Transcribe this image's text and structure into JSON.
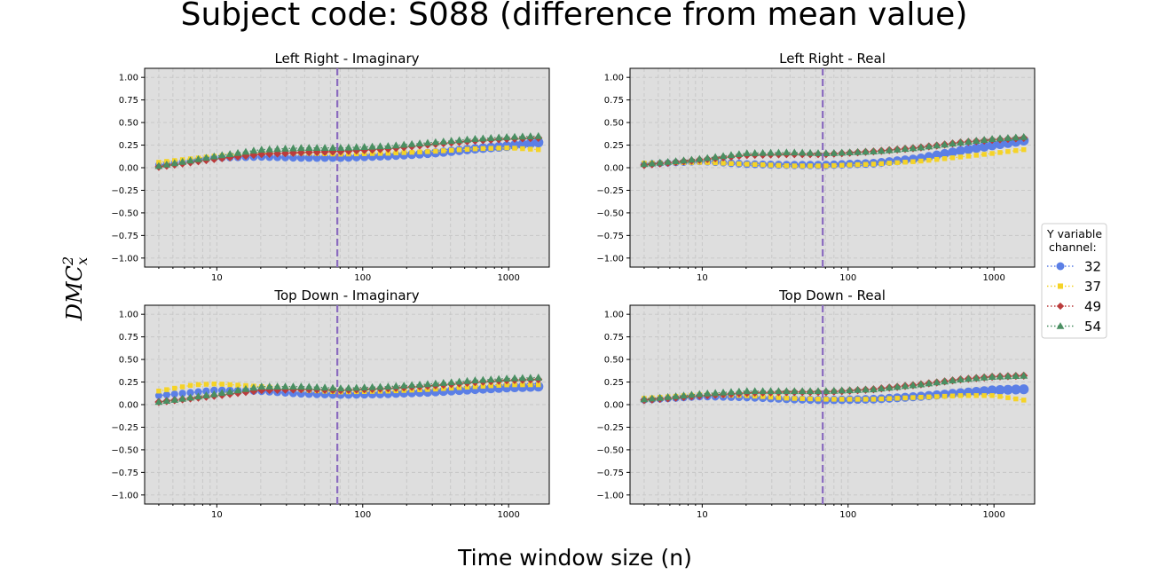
{
  "figure": {
    "title": "Subject code: S088 (difference from mean value)",
    "xlabel": "Time window size (n)",
    "ylabel_base": "DMC",
    "ylabel_sup": "2",
    "ylabel_sub": "x"
  },
  "legend": {
    "title_line1": "Y variable",
    "title_line2": "channel:",
    "entries": [
      {
        "label": "32",
        "color": "#5b7fe6",
        "marker": "circle"
      },
      {
        "label": "37",
        "color": "#f5d327",
        "marker": "square"
      },
      {
        "label": "49",
        "color": "#bb3c3c",
        "marker": "diamond"
      },
      {
        "label": "54",
        "color": "#4a8f62",
        "marker": "triangle"
      }
    ]
  },
  "colors": {
    "panel_bg": "#dedede",
    "grid": "#c6c6c6",
    "vline": "#8a6bbf"
  },
  "chart_data": [
    {
      "type": "scatter",
      "title": "Left Right - Imaginary",
      "xscale": "log",
      "xlim": [
        3.2,
        1900
      ],
      "ylim": [
        -1.1,
        1.1
      ],
      "xticks": [
        10,
        100,
        1000
      ],
      "xtick_labels": [
        "10",
        "100",
        "1000"
      ],
      "yticks": [
        1.0,
        0.75,
        0.5,
        0.25,
        0.0,
        -0.25,
        -0.5,
        -0.75,
        -1.0
      ],
      "ytick_labels": [
        "1.00",
        "0.75",
        "0.50",
        "0.25",
        "0.00",
        "−0.25",
        "−0.50",
        "−0.75",
        "−1.00"
      ],
      "grid": true,
      "vline_x": 67,
      "series": [
        {
          "name": "32",
          "anchors": [
            [
              4,
              0.03
            ],
            [
              10,
              0.11
            ],
            [
              20,
              0.12
            ],
            [
              40,
              0.11
            ],
            [
              70,
              0.11
            ],
            [
              150,
              0.13
            ],
            [
              300,
              0.16
            ],
            [
              600,
              0.21
            ],
            [
              1000,
              0.24
            ],
            [
              1600,
              0.28
            ]
          ]
        },
        {
          "name": "37",
          "anchors": [
            [
              4,
              0.06
            ],
            [
              10,
              0.13
            ],
            [
              20,
              0.16
            ],
            [
              40,
              0.16
            ],
            [
              70,
              0.15
            ],
            [
              150,
              0.16
            ],
            [
              300,
              0.18
            ],
            [
              600,
              0.21
            ],
            [
              1000,
              0.22
            ],
            [
              1600,
              0.2
            ]
          ]
        },
        {
          "name": "49",
          "anchors": [
            [
              4,
              0.01
            ],
            [
              10,
              0.1
            ],
            [
              20,
              0.15
            ],
            [
              40,
              0.17
            ],
            [
              70,
              0.18
            ],
            [
              150,
              0.21
            ],
            [
              300,
              0.26
            ],
            [
              600,
              0.3
            ],
            [
              1000,
              0.32
            ],
            [
              1600,
              0.33
            ]
          ]
        },
        {
          "name": "54",
          "anchors": [
            [
              4,
              0.02
            ],
            [
              10,
              0.13
            ],
            [
              20,
              0.2
            ],
            [
              40,
              0.22
            ],
            [
              70,
              0.22
            ],
            [
              150,
              0.24
            ],
            [
              300,
              0.28
            ],
            [
              600,
              0.32
            ],
            [
              1000,
              0.34
            ],
            [
              1600,
              0.35
            ]
          ]
        }
      ]
    },
    {
      "type": "scatter",
      "title": "Left Right - Real",
      "xscale": "log",
      "xlim": [
        3.2,
        1900
      ],
      "ylim": [
        -1.1,
        1.1
      ],
      "xticks": [
        10,
        100,
        1000
      ],
      "xtick_labels": [
        "10",
        "100",
        "1000"
      ],
      "yticks": [
        1.0,
        0.75,
        0.5,
        0.25,
        0.0,
        -0.25,
        -0.5,
        -0.75,
        -1.0
      ],
      "ytick_labels": [
        "1.00",
        "0.75",
        "0.50",
        "0.25",
        "0.00",
        "−0.25",
        "−0.50",
        "−0.75",
        "−1.00"
      ],
      "grid": true,
      "vline_x": 67,
      "series": [
        {
          "name": "32",
          "anchors": [
            [
              4,
              0.04
            ],
            [
              10,
              0.07
            ],
            [
              20,
              0.04
            ],
            [
              40,
              0.03
            ],
            [
              70,
              0.03
            ],
            [
              150,
              0.05
            ],
            [
              300,
              0.1
            ],
            [
              600,
              0.19
            ],
            [
              1000,
              0.25
            ],
            [
              1600,
              0.3
            ]
          ]
        },
        {
          "name": "37",
          "anchors": [
            [
              4,
              0.05
            ],
            [
              10,
              0.06
            ],
            [
              20,
              0.04
            ],
            [
              40,
              0.02
            ],
            [
              70,
              0.02
            ],
            [
              150,
              0.04
            ],
            [
              300,
              0.07
            ],
            [
              600,
              0.12
            ],
            [
              1000,
              0.16
            ],
            [
              1600,
              0.2
            ]
          ]
        },
        {
          "name": "49",
          "anchors": [
            [
              4,
              0.03
            ],
            [
              10,
              0.09
            ],
            [
              20,
              0.14
            ],
            [
              40,
              0.15
            ],
            [
              70,
              0.15
            ],
            [
              150,
              0.18
            ],
            [
              300,
              0.22
            ],
            [
              600,
              0.28
            ],
            [
              1000,
              0.31
            ],
            [
              1600,
              0.33
            ]
          ]
        },
        {
          "name": "54",
          "anchors": [
            [
              4,
              0.04
            ],
            [
              10,
              0.1
            ],
            [
              20,
              0.16
            ],
            [
              40,
              0.17
            ],
            [
              70,
              0.16
            ],
            [
              150,
              0.18
            ],
            [
              300,
              0.22
            ],
            [
              600,
              0.28
            ],
            [
              1000,
              0.32
            ],
            [
              1600,
              0.34
            ]
          ]
        }
      ]
    },
    {
      "type": "scatter",
      "title": "Top Down - Imaginary",
      "xscale": "log",
      "xlim": [
        3.2,
        1900
      ],
      "ylim": [
        -1.1,
        1.1
      ],
      "xticks": [
        10,
        100,
        1000
      ],
      "xtick_labels": [
        "10",
        "100",
        "1000"
      ],
      "yticks": [
        1.0,
        0.75,
        0.5,
        0.25,
        0.0,
        -0.25,
        -0.5,
        -0.75,
        -1.0
      ],
      "ytick_labels": [
        "1.00",
        "0.75",
        "0.50",
        "0.25",
        "0.00",
        "−0.25",
        "−0.50",
        "−0.75",
        "−1.00"
      ],
      "grid": true,
      "vline_x": 67,
      "series": [
        {
          "name": "32",
          "anchors": [
            [
              4,
              0.1
            ],
            [
              10,
              0.16
            ],
            [
              20,
              0.15
            ],
            [
              40,
              0.12
            ],
            [
              70,
              0.11
            ],
            [
              150,
              0.12
            ],
            [
              300,
              0.14
            ],
            [
              600,
              0.17
            ],
            [
              1000,
              0.19
            ],
            [
              1600,
              0.2
            ]
          ]
        },
        {
          "name": "37",
          "anchors": [
            [
              4,
              0.15
            ],
            [
              7,
              0.22
            ],
            [
              10,
              0.23
            ],
            [
              20,
              0.2
            ],
            [
              40,
              0.16
            ],
            [
              70,
              0.14
            ],
            [
              150,
              0.15
            ],
            [
              300,
              0.17
            ],
            [
              600,
              0.2
            ],
            [
              1000,
              0.22
            ],
            [
              1600,
              0.22
            ]
          ]
        },
        {
          "name": "49",
          "anchors": [
            [
              4,
              0.03
            ],
            [
              10,
              0.1
            ],
            [
              20,
              0.16
            ],
            [
              40,
              0.17
            ],
            [
              70,
              0.16
            ],
            [
              150,
              0.18
            ],
            [
              300,
              0.21
            ],
            [
              600,
              0.25
            ],
            [
              1000,
              0.27
            ],
            [
              1600,
              0.28
            ]
          ]
        },
        {
          "name": "54",
          "anchors": [
            [
              4,
              0.03
            ],
            [
              10,
              0.12
            ],
            [
              20,
              0.2
            ],
            [
              40,
              0.2
            ],
            [
              70,
              0.18
            ],
            [
              150,
              0.2
            ],
            [
              300,
              0.23
            ],
            [
              600,
              0.27
            ],
            [
              1000,
              0.29
            ],
            [
              1600,
              0.3
            ]
          ]
        }
      ]
    },
    {
      "type": "scatter",
      "title": "Top Down - Real",
      "xscale": "log",
      "xlim": [
        3.2,
        1900
      ],
      "ylim": [
        -1.1,
        1.1
      ],
      "xticks": [
        10,
        100,
        1000
      ],
      "xtick_labels": [
        "10",
        "100",
        "1000"
      ],
      "yticks": [
        1.0,
        0.75,
        0.5,
        0.25,
        0.0,
        -0.25,
        -0.5,
        -0.75,
        -1.0
      ],
      "ytick_labels": [
        "1.00",
        "0.75",
        "0.50",
        "0.25",
        "0.00",
        "−0.25",
        "−0.50",
        "−0.75",
        "−1.00"
      ],
      "grid": true,
      "vline_x": 67,
      "series": [
        {
          "name": "32",
          "anchors": [
            [
              4,
              0.05
            ],
            [
              10,
              0.09
            ],
            [
              20,
              0.08
            ],
            [
              40,
              0.06
            ],
            [
              70,
              0.05
            ],
            [
              150,
              0.06
            ],
            [
              300,
              0.09
            ],
            [
              600,
              0.13
            ],
            [
              1000,
              0.16
            ],
            [
              1600,
              0.17
            ]
          ]
        },
        {
          "name": "37",
          "anchors": [
            [
              4,
              0.07
            ],
            [
              10,
              0.11
            ],
            [
              20,
              0.1
            ],
            [
              40,
              0.07
            ],
            [
              70,
              0.06
            ],
            [
              150,
              0.06
            ],
            [
              300,
              0.08
            ],
            [
              600,
              0.1
            ],
            [
              1000,
              0.1
            ],
            [
              1600,
              0.05
            ]
          ]
        },
        {
          "name": "49",
          "anchors": [
            [
              4,
              0.05
            ],
            [
              10,
              0.1
            ],
            [
              20,
              0.13
            ],
            [
              40,
              0.14
            ],
            [
              70,
              0.14
            ],
            [
              150,
              0.17
            ],
            [
              300,
              0.22
            ],
            [
              600,
              0.28
            ],
            [
              1000,
              0.31
            ],
            [
              1600,
              0.32
            ]
          ]
        },
        {
          "name": "54",
          "anchors": [
            [
              4,
              0.06
            ],
            [
              10,
              0.12
            ],
            [
              20,
              0.15
            ],
            [
              40,
              0.15
            ],
            [
              70,
              0.15
            ],
            [
              150,
              0.17
            ],
            [
              300,
              0.22
            ],
            [
              600,
              0.28
            ],
            [
              1000,
              0.31
            ],
            [
              1600,
              0.32
            ]
          ]
        }
      ]
    }
  ]
}
